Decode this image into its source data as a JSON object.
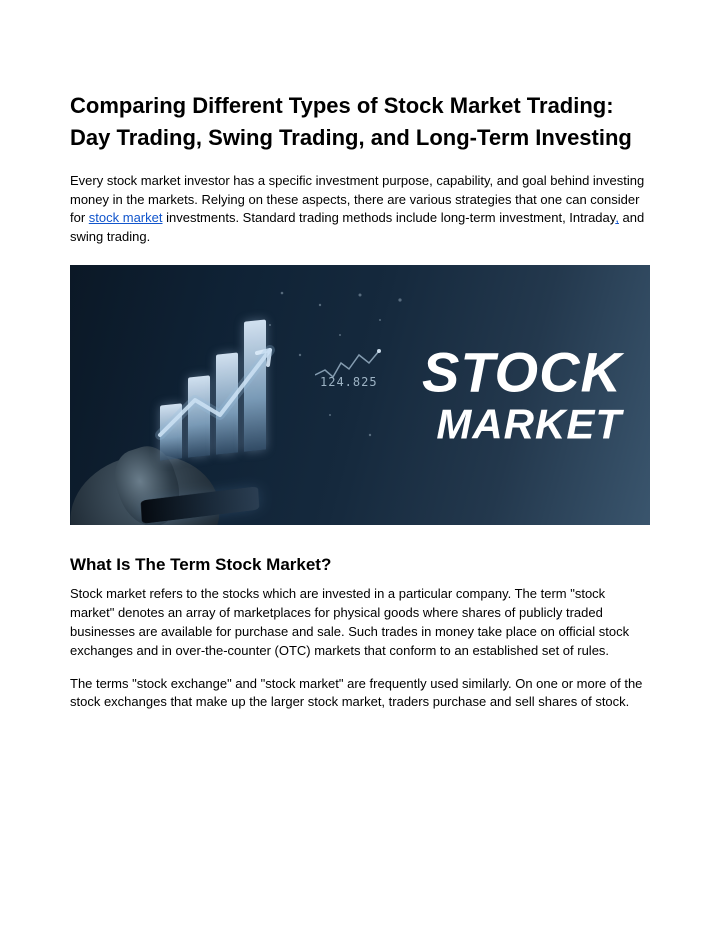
{
  "title": "Comparing Different Types of Stock Market Trading: Day Trading, Swing Trading, and Long-Term Investing",
  "intro": {
    "before_link": "Every stock market investor has a specific investment purpose, capability, and goal behind investing money in the markets. Relying on these aspects, there are various strategies that one can consider for ",
    "link_text": "stock market",
    "after_link": " investments. Standard trading methods include long-term investment, Intraday",
    "comma_link": ",",
    "tail": " and swing trading."
  },
  "hero": {
    "line1": "STOCK",
    "line2": "MARKET",
    "number_label": "124.825",
    "bar_heights": [
      55,
      80,
      100,
      130
    ],
    "bar_color_top": "#dcebfa",
    "bar_color_bottom": "#466482",
    "bg_from": "#0b1826",
    "bg_to": "#3a556d"
  },
  "section2_title": "What Is The Term Stock Market?",
  "p1": "Stock market refers to the stocks which are invested in a particular company. The term \"stock market\" denotes an array of marketplaces for physical goods where shares of publicly traded businesses are available for purchase and sale. Such trades in money take place on official stock exchanges and in over-the-counter (OTC) markets that conform to an established set of rules.",
  "p2": "The terms \"stock exchange\" and \"stock market\" are frequently used similarly. On one or more of the stock exchanges that make up the larger stock market, traders purchase and sell shares of stock.",
  "colors": {
    "link": "#1155cc",
    "text": "#000000",
    "bg": "#ffffff"
  }
}
